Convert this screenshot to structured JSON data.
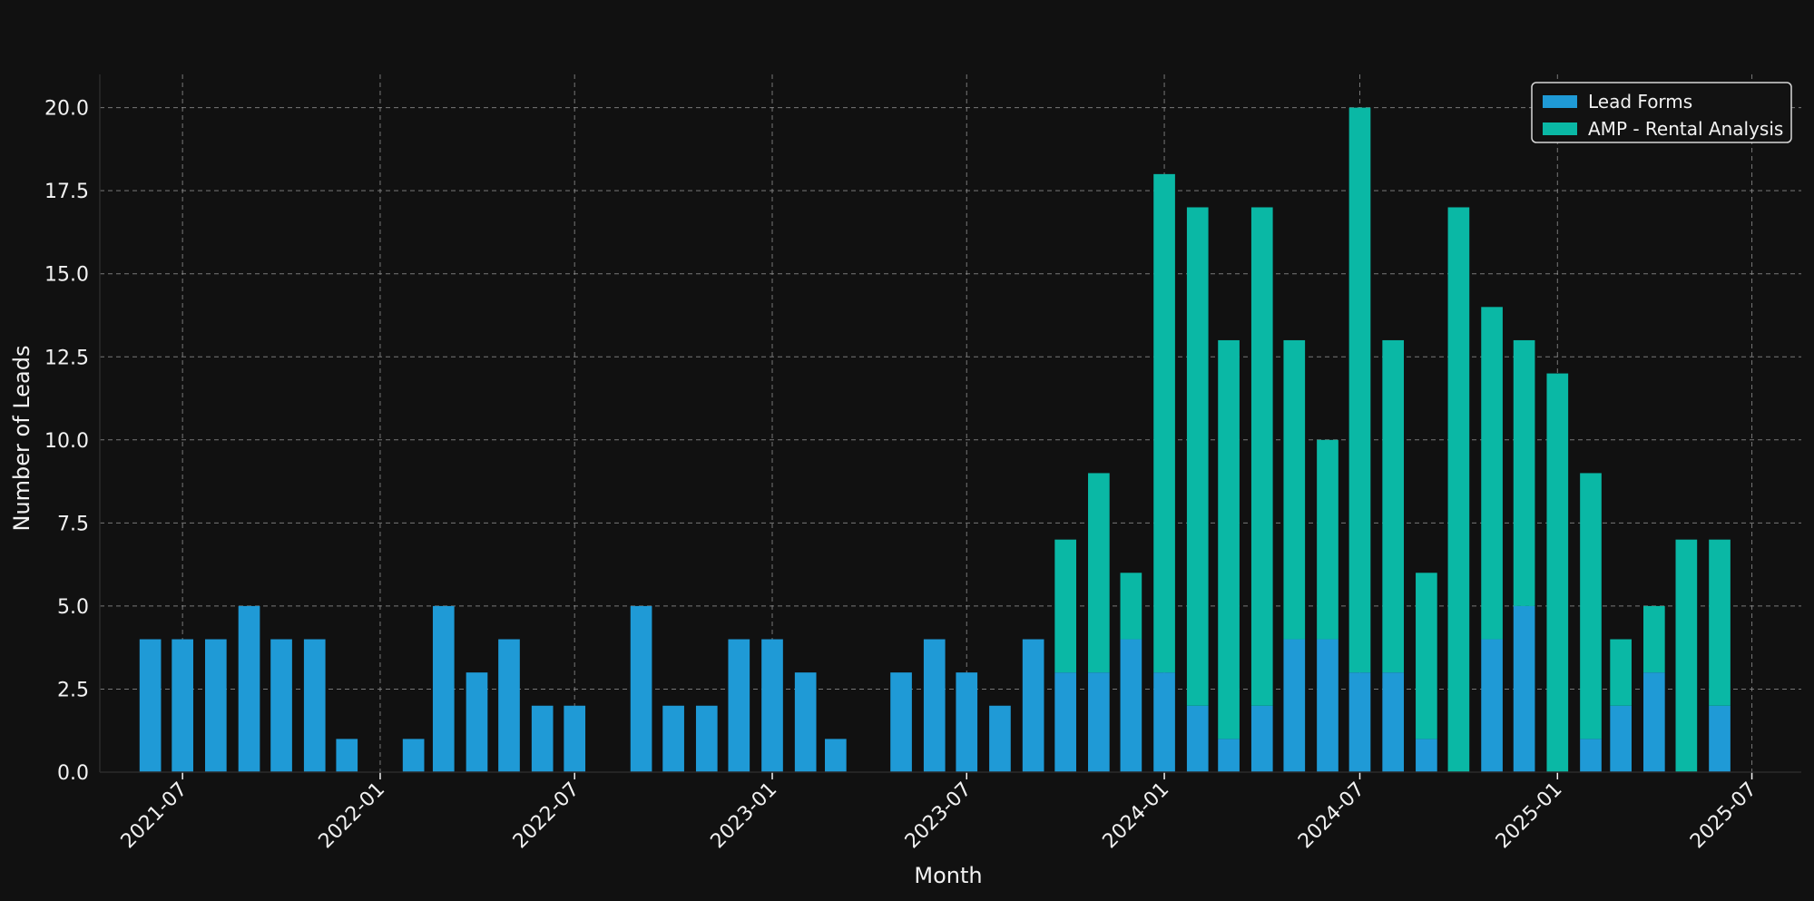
{
  "chart_data": {
    "type": "bar",
    "stacked": true,
    "title": "",
    "xlabel": "Month",
    "ylabel": "Number of Leads",
    "ylim": [
      0,
      21
    ],
    "yticks": [
      0,
      2.5,
      5,
      7.5,
      10,
      12.5,
      15,
      17.5,
      20
    ],
    "ytick_labels": [
      "0.0",
      "2.5",
      "5.0",
      "7.5",
      "10.0",
      "12.5",
      "15.0",
      "17.5",
      "20.0"
    ],
    "xlim": [
      "2021-04-15",
      "2025-08-16"
    ],
    "xticks": [
      "2021-07",
      "2022-01",
      "2022-07",
      "2023-01",
      "2023-07",
      "2024-01",
      "2024-07",
      "2025-01",
      "2025-07"
    ],
    "grid": true,
    "legend_position": "top-right",
    "months": [
      "2021-06",
      "2021-07",
      "2021-08",
      "2021-09",
      "2021-10",
      "2021-11",
      "2021-12",
      "2022-01",
      "2022-02",
      "2022-03",
      "2022-04",
      "2022-05",
      "2022-06",
      "2022-07",
      "2022-08",
      "2022-09",
      "2022-10",
      "2022-11",
      "2022-12",
      "2023-01",
      "2023-02",
      "2023-03",
      "2023-04",
      "2023-05",
      "2023-06",
      "2023-07",
      "2023-08",
      "2023-09",
      "2023-10",
      "2023-11",
      "2023-12",
      "2024-01",
      "2024-02",
      "2024-03",
      "2024-04",
      "2024-05",
      "2024-06",
      "2024-07",
      "2024-08",
      "2024-09",
      "2024-10",
      "2024-11",
      "2024-12",
      "2025-01",
      "2025-02",
      "2025-03",
      "2025-04",
      "2025-05",
      "2025-06"
    ],
    "series": [
      {
        "name": "Lead Forms",
        "color": "#1f9ad6",
        "values": [
          4,
          4,
          4,
          5,
          4,
          4,
          1,
          0,
          1,
          5,
          3,
          4,
          2,
          2,
          0,
          5,
          2,
          2,
          4,
          4,
          3,
          1,
          0,
          3,
          4,
          3,
          2,
          4,
          3,
          3,
          4,
          3,
          2,
          1,
          2,
          4,
          4,
          3,
          3,
          1,
          0,
          4,
          5,
          0,
          1,
          2,
          3,
          0,
          2
        ]
      },
      {
        "name": "AMP - Rental Analysis",
        "color": "#0ab8a5",
        "values": [
          0,
          0,
          0,
          0,
          0,
          0,
          0,
          0,
          0,
          0,
          0,
          0,
          0,
          0,
          0,
          0,
          0,
          0,
          0,
          0,
          0,
          0,
          0,
          0,
          0,
          0,
          0,
          0,
          4,
          6,
          2,
          15,
          15,
          12,
          15,
          9,
          6,
          17,
          10,
          5,
          17,
          10,
          8,
          12,
          8,
          2,
          2,
          7,
          5
        ]
      }
    ]
  }
}
